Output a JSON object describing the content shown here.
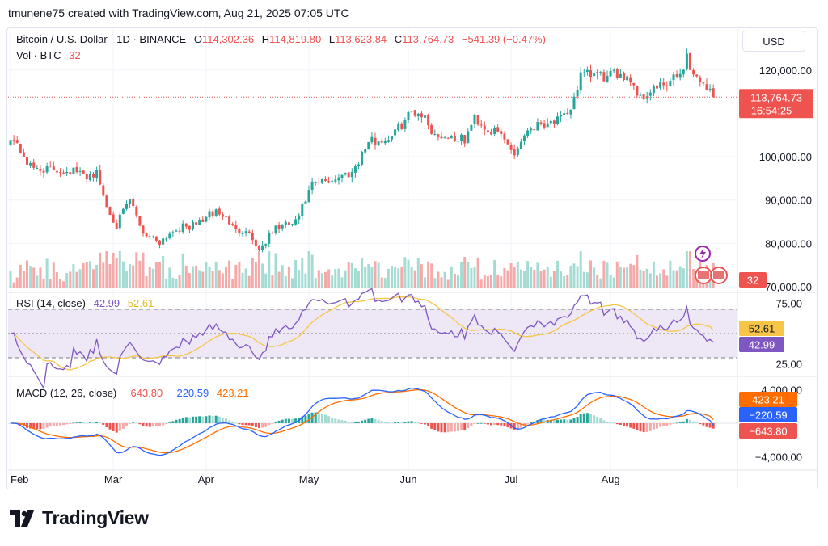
{
  "page": {
    "attribution": "tmunene75 created with TradingView.com, Aug 21, 2025 07:05 UTC",
    "currency_button": "USD",
    "brand": "TradingView"
  },
  "legend": {
    "symbol": "Bitcoin / U.S. Dollar · 1D · BINANCE",
    "open_label": "O",
    "open": "114,302.36",
    "high_label": "H",
    "high": "114,819.80",
    "low_label": "L",
    "low": "113,623.84",
    "close_label": "C",
    "close": "113,764.73",
    "change": "−541.39 (−0.47%)",
    "vol_label": "Vol · BTC",
    "vol": "32"
  },
  "badges": {
    "price": "113,764.73",
    "countdown": "16:54:25",
    "volume": "32",
    "rsi": "52.61",
    "rsi_value": "42.99",
    "macd_signal": "423.21",
    "macd_line": "−220.59",
    "macd_hist": "−643.80"
  },
  "colors": {
    "up": "#26a69a",
    "down": "#ef5350",
    "rsi": "#7e57c2",
    "rsi_ma": "#f7c548",
    "macd": "#2962ff",
    "signal": "#ff6d00",
    "rsi_band": "#ede7f6"
  },
  "chart_data": [
    {
      "type": "candlestick",
      "title": "Bitcoin / U.S. Dollar · 1D · BINANCE",
      "x_tick_labels": [
        "Feb",
        "Mar",
        "Apr",
        "May",
        "Jun",
        "Jul",
        "Aug"
      ],
      "y_tick_labels": [
        "120,000.00",
        "100,000.00",
        "90,000.00",
        "80,000.00",
        "70,000.00"
      ],
      "y_ticks": [
        120000,
        100000,
        90000,
        80000,
        70000
      ],
      "y_range": [
        70000,
        125000
      ],
      "last_price": 113764.73,
      "anchor_points": [
        {
          "d": 0,
          "p": 105000
        },
        {
          "d": 3,
          "p": 101500
        },
        {
          "d": 6,
          "p": 97500
        },
        {
          "d": 12,
          "p": 97000
        },
        {
          "d": 19,
          "p": 96800
        },
        {
          "d": 22,
          "p": 95500
        },
        {
          "d": 26,
          "p": 96200
        },
        {
          "d": 29,
          "p": 88500
        },
        {
          "d": 32,
          "p": 84300
        },
        {
          "d": 36,
          "p": 90000
        },
        {
          "d": 40,
          "p": 82500
        },
        {
          "d": 45,
          "p": 80500
        },
        {
          "d": 50,
          "p": 83500
        },
        {
          "d": 55,
          "p": 84000
        },
        {
          "d": 62,
          "p": 87500
        },
        {
          "d": 66,
          "p": 85000
        },
        {
          "d": 68,
          "p": 82800
        },
        {
          "d": 71,
          "p": 83500
        },
        {
          "d": 75,
          "p": 78500
        },
        {
          "d": 80,
          "p": 83600
        },
        {
          "d": 86,
          "p": 84800
        },
        {
          "d": 91,
          "p": 93500
        },
        {
          "d": 97,
          "p": 94800
        },
        {
          "d": 103,
          "p": 96500
        },
        {
          "d": 108,
          "p": 103500
        },
        {
          "d": 113,
          "p": 103800
        },
        {
          "d": 117,
          "p": 106500
        },
        {
          "d": 121,
          "p": 110500
        },
        {
          "d": 124,
          "p": 110000
        },
        {
          "d": 128,
          "p": 105000
        },
        {
          "d": 133,
          "p": 104500
        },
        {
          "d": 137,
          "p": 103800
        },
        {
          "d": 140,
          "p": 109000
        },
        {
          "d": 144,
          "p": 106200
        },
        {
          "d": 148,
          "p": 105000
        },
        {
          "d": 152,
          "p": 100800
        },
        {
          "d": 156,
          "p": 106500
        },
        {
          "d": 160,
          "p": 107800
        },
        {
          "d": 165,
          "p": 108400
        },
        {
          "d": 168,
          "p": 109200
        },
        {
          "d": 172,
          "p": 118500
        },
        {
          "d": 176,
          "p": 119000
        },
        {
          "d": 180,
          "p": 118200
        },
        {
          "d": 184,
          "p": 119400
        },
        {
          "d": 187,
          "p": 118000
        },
        {
          "d": 190,
          "p": 113500
        },
        {
          "d": 194,
          "p": 115800
        },
        {
          "d": 198,
          "p": 116500
        },
        {
          "d": 202,
          "p": 119200
        },
        {
          "d": 204,
          "p": 123100
        },
        {
          "d": 206,
          "p": 118800
        },
        {
          "d": 209,
          "p": 117200
        },
        {
          "d": 212,
          "p": 113764.73
        }
      ]
    },
    {
      "type": "bar",
      "title": "Vol · BTC",
      "last_value": 32
    },
    {
      "type": "line",
      "title": "RSI (14, close)",
      "series": [
        {
          "name": "RSI",
          "last": 42.99
        },
        {
          "name": "RSI-based MA",
          "last": 52.61
        }
      ],
      "y_tick_labels": [
        "75.00",
        "25.00"
      ],
      "y_range": [
        20,
        80
      ],
      "bands": [
        70,
        50,
        30
      ]
    },
    {
      "type": "line",
      "title": "MACD (12, 26, close)",
      "series": [
        {
          "name": "Histogram",
          "last": -643.8
        },
        {
          "name": "MACD",
          "last": -220.59
        },
        {
          "name": "Signal",
          "last": 423.21
        }
      ],
      "y_tick_labels": [
        "4,000.00",
        "−4,000.00"
      ],
      "y_range": [
        -5200,
        5200
      ]
    }
  ]
}
